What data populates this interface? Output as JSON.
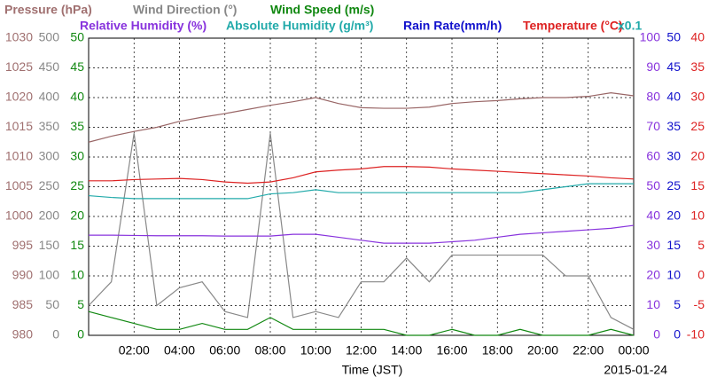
{
  "chart_data": {
    "type": "line",
    "header": [
      {
        "text": "Pressure (hPa)",
        "color": "#a07070",
        "row": 0
      },
      {
        "text": "Wind Direction (°)",
        "color": "#888888",
        "row": 0
      },
      {
        "text": "Wind Speed (m/s)",
        "color": "#118811",
        "row": 0
      },
      {
        "text": "Relative Humidity (%)",
        "color": "#8833dd",
        "row": 1
      },
      {
        "text": "Absolute Humidity (g/m³)",
        "color": "#22aaaa",
        "row": 1
      },
      {
        "text": "Rain Rate(mm/h)",
        "color": "#1111cc",
        "row": 1
      },
      {
        "text": "Temperature (°C)",
        "color": "#dd2222",
        "row": 1
      },
      {
        "text": "x0.1",
        "color": "#22aaaa",
        "row": 1
      }
    ],
    "xlabel": "Time (JST)",
    "date": "2015-01-24",
    "xlim": [
      0,
      24
    ],
    "xticks": [
      {
        "value": 2,
        "label": "02:00"
      },
      {
        "value": 4,
        "label": "04:00"
      },
      {
        "value": 6,
        "label": "06:00"
      },
      {
        "value": 8,
        "label": "08:00"
      },
      {
        "value": 10,
        "label": "10:00"
      },
      {
        "value": 12,
        "label": "12:00"
      },
      {
        "value": 14,
        "label": "14:00"
      },
      {
        "value": 16,
        "label": "16:00"
      },
      {
        "value": 18,
        "label": "18:00"
      },
      {
        "value": 20,
        "label": "20:00"
      },
      {
        "value": 22,
        "label": "22:00"
      },
      {
        "value": 24,
        "label": "00:00"
      }
    ],
    "grid": true,
    "axes": [
      {
        "side": "left",
        "color": "#a07070",
        "lim": [
          980,
          1030
        ],
        "ticks": [
          980,
          985,
          990,
          995,
          1000,
          1005,
          1010,
          1015,
          1020,
          1025,
          1030
        ]
      },
      {
        "side": "left",
        "color": "#888888",
        "lim": [
          0,
          500
        ],
        "ticks": [
          0,
          50,
          100,
          150,
          200,
          250,
          300,
          350,
          400,
          450,
          500
        ]
      },
      {
        "side": "left",
        "color": "#118811",
        "lim": [
          0,
          50
        ],
        "ticks": [
          0,
          5,
          10,
          15,
          20,
          25,
          30,
          35,
          40,
          45,
          50
        ]
      },
      {
        "side": "right",
        "color": "#8833dd",
        "lim": [
          0,
          100
        ],
        "ticks": [
          0,
          10,
          20,
          30,
          40,
          50,
          60,
          70,
          80,
          90,
          100
        ]
      },
      {
        "side": "right",
        "color": "#1111cc",
        "lim": [
          0,
          50
        ],
        "ticks": [
          0,
          5,
          10,
          15,
          20,
          25,
          30,
          35,
          40,
          45,
          50
        ]
      },
      {
        "side": "right",
        "color": "#dd2222",
        "lim": [
          -10,
          40
        ],
        "ticks": [
          -10,
          -5,
          0,
          5,
          10,
          15,
          20,
          25,
          30,
          35,
          40
        ]
      }
    ],
    "x": [
      0,
      1,
      2,
      3,
      4,
      5,
      6,
      7,
      8,
      9,
      10,
      11,
      12,
      13,
      14,
      15,
      16,
      17,
      18,
      19,
      20,
      21,
      22,
      23,
      24
    ],
    "series": [
      {
        "color": "#996666",
        "axis": 0,
        "values": [
          1012.5,
          1013.5,
          1014.3,
          1015,
          1016,
          1016.7,
          1017.3,
          1018,
          1018.7,
          1019.3,
          1020,
          1019,
          1018.3,
          1018.2,
          1018.2,
          1018.4,
          1019,
          1019.3,
          1019.5,
          1019.8,
          1020,
          1020,
          1020.2,
          1020.8,
          1020.3
        ]
      },
      {
        "color": "#888888",
        "axis": 1,
        "values": [
          50,
          90,
          340,
          50,
          80,
          90,
          40,
          30,
          340,
          30,
          40,
          30,
          90,
          90,
          130,
          90,
          135,
          135,
          135,
          135,
          135,
          100,
          100,
          30,
          10
        ]
      },
      {
        "color": "#118811",
        "axis": 2,
        "values": [
          4,
          3,
          2,
          1,
          1,
          2,
          1,
          1,
          3,
          1,
          1,
          1,
          1,
          1,
          0,
          0,
          1,
          0,
          0,
          1,
          0,
          0,
          0,
          1,
          0
        ]
      },
      {
        "color": "#8833dd",
        "axis": 3,
        "values": [
          33.7,
          33.7,
          33.6,
          33.5,
          33.5,
          33.5,
          33.4,
          33.4,
          33.4,
          34,
          34,
          33,
          32,
          31,
          31,
          31,
          31.5,
          32,
          33,
          34,
          34.5,
          35,
          35.5,
          36,
          37
        ]
      },
      {
        "color": "#22aaaa",
        "axis": 4,
        "values": [
          23.5,
          23.2,
          23,
          23,
          23,
          23,
          23,
          23,
          23.8,
          24,
          24.5,
          24,
          24,
          24,
          24,
          24,
          24,
          24,
          24,
          24,
          24.5,
          25,
          25.5,
          25.5,
          25.5
        ]
      },
      {
        "color": "#dd2222",
        "axis": 5,
        "values": [
          16,
          16,
          16.2,
          16.3,
          16.4,
          16.2,
          15.8,
          15.6,
          15.8,
          16.5,
          17.5,
          17.8,
          18,
          18.4,
          18.4,
          18.3,
          18,
          17.8,
          17.6,
          17.4,
          17.2,
          17,
          16.8,
          16.5,
          16.3
        ]
      }
    ]
  }
}
